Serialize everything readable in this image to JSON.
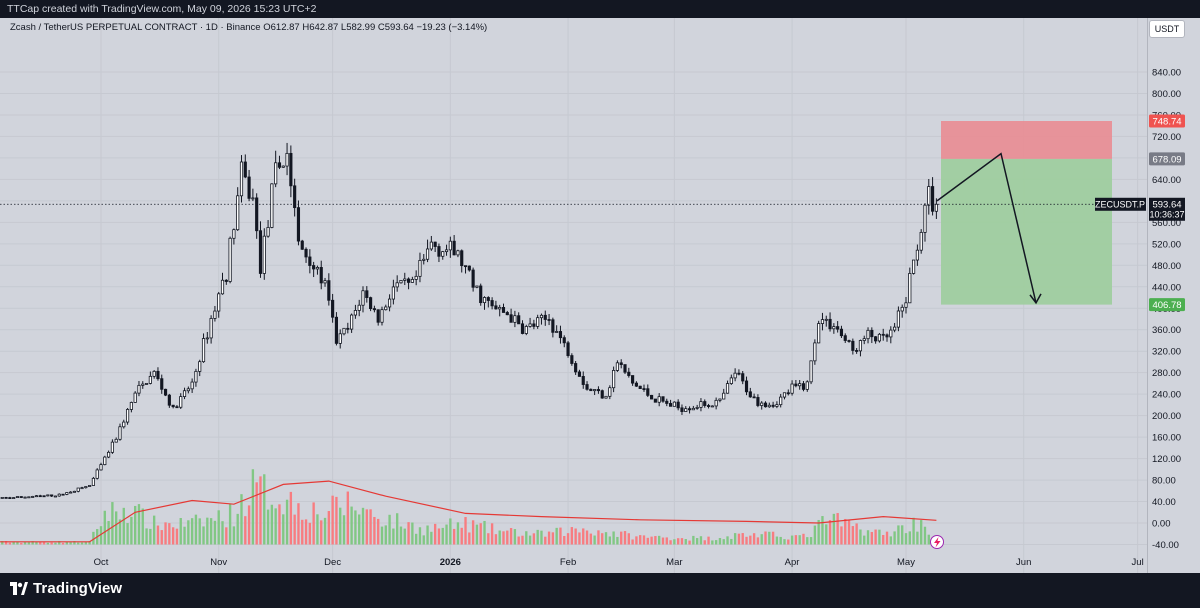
{
  "header": {
    "credit": "TTCap created with TradingView.com, May 09, 2026 15:23 UTC+2",
    "symbol_line": "Zcash / TetherUS PERPETUAL CONTRACT · 1D · Binance",
    "open": "O612.87",
    "high": "H642.87",
    "low": "L582.99",
    "close": "C593.64",
    "change": "−19.23 (−3.14%)"
  },
  "currency_button": "USDT",
  "footer": {
    "brand": "TradingView"
  },
  "colors": {
    "up": "#4caf50",
    "down": "#ef5350",
    "volume_up": "#81c784",
    "volume_down": "#f77c80",
    "volume_ma": "#e53935",
    "stop_zone": "#e88f96",
    "target_zone": "#9fcd9f",
    "background": "#d1d4dc"
  },
  "chart_data": {
    "type": "candlestick",
    "title": "Zcash / TetherUS PERPETUAL CONTRACT · 1D · Binance",
    "y_axis": {
      "ticks": [
        "840.00",
        "800.00",
        "760.00",
        "720.00",
        "680.00",
        "640.00",
        "600.00",
        "560.00",
        "520.00",
        "480.00",
        "440.00",
        "400.00",
        "360.00",
        "320.00",
        "280.00",
        "240.00",
        "200.00",
        "160.00",
        "120.00",
        "80.00",
        "40.00",
        "0.00",
        "-40.00"
      ],
      "ylim": [
        -40,
        840
      ]
    },
    "x_axis": {
      "ticks": [
        "Oct",
        "Nov",
        "Dec",
        "2026",
        "Feb",
        "Mar",
        "Apr",
        "May",
        "Jun",
        "Jul"
      ],
      "bold_tick": "2026"
    },
    "price_labels": {
      "stop": "748.74",
      "entry": "678.09",
      "current_symbol": "ZECUSDT.P",
      "current": "593.64",
      "countdown": "10:36:37",
      "target": "406.78"
    },
    "trade_setup": {
      "stop_loss": 748.74,
      "entry": 678.09,
      "target": 406.78,
      "current_price": 593.64,
      "projection": [
        "up to ~690",
        "down to ~410"
      ]
    },
    "price_anchors": [
      {
        "date": "2025-09-01",
        "price": 45
      },
      {
        "date": "2025-09-20",
        "price": 52
      },
      {
        "date": "2025-09-28",
        "price": 70
      },
      {
        "date": "2025-10-02",
        "price": 120
      },
      {
        "date": "2025-10-05",
        "price": 160
      },
      {
        "date": "2025-10-10",
        "price": 240
      },
      {
        "date": "2025-10-15",
        "price": 280
      },
      {
        "date": "2025-10-20",
        "price": 210
      },
      {
        "date": "2025-10-25",
        "price": 260
      },
      {
        "date": "2025-10-30",
        "price": 380
      },
      {
        "date": "2025-11-03",
        "price": 470
      },
      {
        "date": "2025-11-07",
        "price": 650
      },
      {
        "date": "2025-11-10",
        "price": 600
      },
      {
        "date": "2025-11-12",
        "price": 480
      },
      {
        "date": "2025-11-16",
        "price": 650
      },
      {
        "date": "2025-11-19",
        "price": 690
      },
      {
        "date": "2025-11-22",
        "price": 520
      },
      {
        "date": "2025-11-26",
        "price": 480
      },
      {
        "date": "2025-11-29",
        "price": 440
      },
      {
        "date": "2025-12-02",
        "price": 340
      },
      {
        "date": "2025-12-05",
        "price": 360
      },
      {
        "date": "2025-12-09",
        "price": 430
      },
      {
        "date": "2025-12-13",
        "price": 380
      },
      {
        "date": "2025-12-17",
        "price": 440
      },
      {
        "date": "2025-12-22",
        "price": 440
      },
      {
        "date": "2025-12-27",
        "price": 520
      },
      {
        "date": "2026-01-03",
        "price": 500
      },
      {
        "date": "2026-01-07",
        "price": 440
      },
      {
        "date": "2026-01-12",
        "price": 400
      },
      {
        "date": "2026-01-16",
        "price": 390
      },
      {
        "date": "2026-01-20",
        "price": 360
      },
      {
        "date": "2026-01-27",
        "price": 380
      },
      {
        "date": "2026-02-01",
        "price": 320
      },
      {
        "date": "2026-02-06",
        "price": 250
      },
      {
        "date": "2026-02-11",
        "price": 240
      },
      {
        "date": "2026-02-14",
        "price": 300
      },
      {
        "date": "2026-02-18",
        "price": 260
      },
      {
        "date": "2026-02-24",
        "price": 230
      },
      {
        "date": "2026-03-02",
        "price": 215
      },
      {
        "date": "2026-03-08",
        "price": 220
      },
      {
        "date": "2026-03-13",
        "price": 225
      },
      {
        "date": "2026-03-17",
        "price": 280
      },
      {
        "date": "2026-03-22",
        "price": 230
      },
      {
        "date": "2026-03-27",
        "price": 220
      },
      {
        "date": "2026-04-01",
        "price": 250
      },
      {
        "date": "2026-04-05",
        "price": 260
      },
      {
        "date": "2026-04-08",
        "price": 380
      },
      {
        "date": "2026-04-12",
        "price": 370
      },
      {
        "date": "2026-04-17",
        "price": 320
      },
      {
        "date": "2026-04-21",
        "price": 350
      },
      {
        "date": "2026-04-25",
        "price": 340
      },
      {
        "date": "2026-04-28",
        "price": 360
      },
      {
        "date": "2026-05-01",
        "price": 420
      },
      {
        "date": "2026-05-04",
        "price": 520
      },
      {
        "date": "2026-05-07",
        "price": 610
      },
      {
        "date": "2026-05-09",
        "price": 593.64
      }
    ],
    "volume_anchors": [
      {
        "date": "2025-09-01",
        "volume": 5
      },
      {
        "date": "2025-09-28",
        "volume": 5
      },
      {
        "date": "2025-10-02",
        "volume": 60
      },
      {
        "date": "2025-10-08",
        "volume": 70
      },
      {
        "date": "2025-10-15",
        "volume": 40
      },
      {
        "date": "2025-10-25",
        "volume": 40
      },
      {
        "date": "2025-11-05",
        "volume": 60
      },
      {
        "date": "2025-11-10",
        "volume": 110
      },
      {
        "date": "2025-11-18",
        "volume": 90
      },
      {
        "date": "2025-11-28",
        "volume": 60
      },
      {
        "date": "2025-12-05",
        "volume": 80
      },
      {
        "date": "2025-12-15",
        "volume": 50
      },
      {
        "date": "2025-12-25",
        "volume": 30
      },
      {
        "date": "2026-01-05",
        "volume": 40
      },
      {
        "date": "2026-01-15",
        "volume": 25
      },
      {
        "date": "2026-01-25",
        "volume": 20
      },
      {
        "date": "2026-02-05",
        "volume": 30
      },
      {
        "date": "2026-02-20",
        "volume": 15
      },
      {
        "date": "2026-03-10",
        "volume": 12
      },
      {
        "date": "2026-03-20",
        "volume": 20
      },
      {
        "date": "2026-04-05",
        "volume": 15
      },
      {
        "date": "2026-04-10",
        "volume": 50
      },
      {
        "date": "2026-04-25",
        "volume": 20
      },
      {
        "date": "2026-05-05",
        "volume": 45
      },
      {
        "date": "2026-05-09",
        "volume": 10
      }
    ],
    "volume_ma_anchors": [
      {
        "date": "2025-09-01",
        "value": -35
      },
      {
        "date": "2025-09-28",
        "value": -35
      },
      {
        "date": "2025-10-10",
        "value": 20
      },
      {
        "date": "2025-10-25",
        "value": 42
      },
      {
        "date": "2025-11-05",
        "value": 35
      },
      {
        "date": "2025-11-18",
        "value": 72
      },
      {
        "date": "2025-11-30",
        "value": 78
      },
      {
        "date": "2025-12-15",
        "value": 50
      },
      {
        "date": "2026-01-05",
        "value": 18
      },
      {
        "date": "2026-01-25",
        "value": 12
      },
      {
        "date": "2026-02-20",
        "value": 6
      },
      {
        "date": "2026-03-20",
        "value": 3
      },
      {
        "date": "2026-04-08",
        "value": 0
      },
      {
        "date": "2026-04-25",
        "value": 12
      },
      {
        "date": "2026-05-09",
        "value": 5
      }
    ]
  }
}
